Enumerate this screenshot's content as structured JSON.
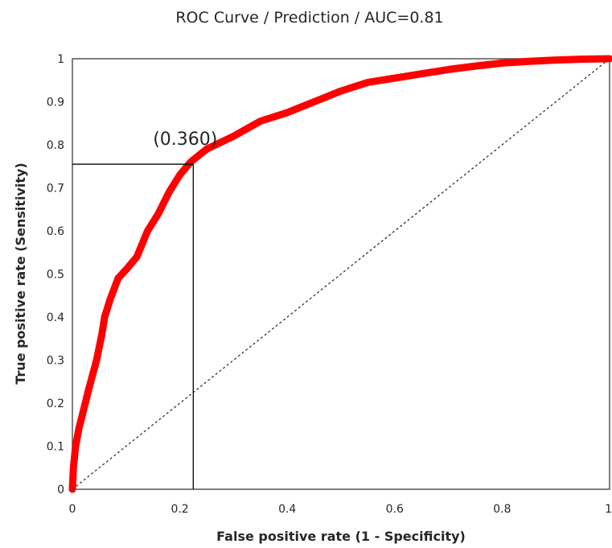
{
  "chart_data": {
    "type": "line",
    "title": "ROC Curve / Prediction  / AUC=0.81",
    "xlabel": "False positive rate (1 - Specificity)",
    "ylabel": "True positive rate (Sensitivity)",
    "xlim": [
      0,
      1
    ],
    "ylim": [
      0,
      1
    ],
    "x_ticks": [
      "0",
      "0.2",
      "0.4",
      "0.6",
      "0.8",
      "1"
    ],
    "y_ticks": [
      "0",
      "0.1",
      "0.2",
      "0.3",
      "0.4",
      "0.5",
      "0.6",
      "0.7",
      "0.8",
      "0.9",
      "1"
    ],
    "grid": false,
    "series": [
      {
        "color": "#ff0000",
        "style": "thick solid",
        "x": [
          0,
          0.002,
          0.006,
          0.012,
          0.02,
          0.03,
          0.045,
          0.055,
          0.06,
          0.07,
          0.085,
          0.1,
          0.12,
          0.14,
          0.16,
          0.18,
          0.2,
          0.22,
          0.25,
          0.3,
          0.35,
          0.4,
          0.45,
          0.5,
          0.55,
          0.6,
          0.65,
          0.7,
          0.75,
          0.8,
          0.85,
          0.9,
          0.95,
          1.0
        ],
        "y": [
          0,
          0.05,
          0.1,
          0.14,
          0.18,
          0.23,
          0.3,
          0.36,
          0.4,
          0.44,
          0.49,
          0.51,
          0.54,
          0.6,
          0.64,
          0.69,
          0.73,
          0.76,
          0.79,
          0.82,
          0.855,
          0.875,
          0.9,
          0.925,
          0.945,
          0.955,
          0.965,
          0.975,
          0.983,
          0.99,
          0.994,
          0.997,
          0.999,
          1.0
        ]
      },
      {
        "color": "#333333",
        "style": "dashed",
        "x": [
          0,
          1
        ],
        "y": [
          0,
          1
        ]
      }
    ],
    "reference_lines": [
      {
        "x": 0.225,
        "y": 0.755
      }
    ],
    "annotations": [
      {
        "text": "(0.360)",
        "x": 0.21,
        "y": 0.8
      }
    ]
  }
}
